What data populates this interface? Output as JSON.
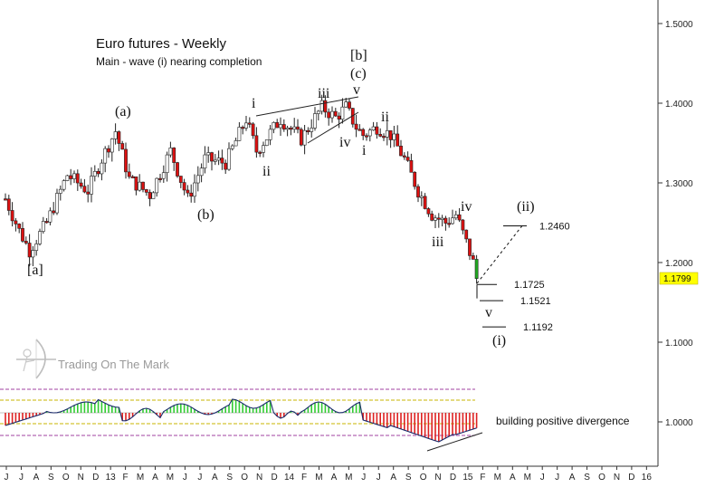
{
  "chart_data": {
    "type": "candlestick",
    "title": "Euro futures - Weekly",
    "subtitle": "Main - wave (i) nearing completion",
    "y_axis": {
      "range": [
        0.94,
        1.52
      ],
      "ticks": [
        "1.5000",
        "1.4000",
        "1.3000",
        "1.2000",
        "1.1000",
        "1.0000"
      ],
      "tick_values": [
        1.5,
        1.4,
        1.3,
        1.2,
        1.1,
        1.0
      ],
      "side": "right"
    },
    "x_axis": {
      "ticks": [
        "J",
        "J",
        "A",
        "S",
        "O",
        "N",
        "D",
        "13",
        "F",
        "M",
        "A",
        "M",
        "J",
        "J",
        "A",
        "S",
        "O",
        "N",
        "D",
        "14",
        "F",
        "M",
        "A",
        "M",
        "J",
        "J",
        "A",
        "S",
        "O",
        "N",
        "D",
        "15",
        "F",
        "M",
        "A",
        "M",
        "J",
        "J",
        "A",
        "S",
        "O",
        "N",
        "D",
        "16"
      ]
    },
    "last_price": {
      "label": "1.1799",
      "value": 1.1799,
      "color": "#ffff00"
    },
    "price_path": [
      {
        "week": 0,
        "price": 1.28
      },
      {
        "week": 4,
        "price": 1.24
      },
      {
        "week": 7,
        "price": 1.215
      },
      {
        "week": 12,
        "price": 1.25
      },
      {
        "week": 18,
        "price": 1.31
      },
      {
        "week": 24,
        "price": 1.29
      },
      {
        "week": 28,
        "price": 1.33
      },
      {
        "week": 32,
        "price": 1.365
      },
      {
        "week": 36,
        "price": 1.305
      },
      {
        "week": 42,
        "price": 1.285
      },
      {
        "week": 48,
        "price": 1.34
      },
      {
        "week": 53,
        "price": 1.28
      },
      {
        "week": 58,
        "price": 1.33
      },
      {
        "week": 64,
        "price": 1.325
      },
      {
        "week": 70,
        "price": 1.38
      },
      {
        "week": 73,
        "price": 1.34
      },
      {
        "week": 80,
        "price": 1.38
      },
      {
        "week": 86,
        "price": 1.355
      },
      {
        "week": 92,
        "price": 1.395
      },
      {
        "week": 96,
        "price": 1.382
      },
      {
        "week": 99,
        "price": 1.395
      },
      {
        "week": 102,
        "price": 1.37
      },
      {
        "week": 104,
        "price": 1.36
      },
      {
        "week": 108,
        "price": 1.37
      },
      {
        "week": 112,
        "price": 1.36
      },
      {
        "week": 116,
        "price": 1.33
      },
      {
        "week": 120,
        "price": 1.29
      },
      {
        "week": 124,
        "price": 1.26
      },
      {
        "week": 128,
        "price": 1.25
      },
      {
        "week": 131,
        "price": 1.26
      },
      {
        "week": 134,
        "price": 1.225
      },
      {
        "week": 136,
        "price": 1.2
      },
      {
        "week": 137,
        "price": 1.18
      }
    ],
    "wave_labels": [
      "[a]",
      "(a)",
      "(b)",
      "i",
      "ii",
      "iii",
      "iv",
      "v",
      "[b]",
      "(c)",
      "i",
      "ii",
      "iii",
      "iv",
      "v",
      "(i)",
      "(ii)"
    ],
    "levels": [
      {
        "label": "1.2460",
        "value": 1.246
      },
      {
        "label": "1.1725",
        "value": 1.1725
      },
      {
        "label": "1.1521",
        "value": 1.1521
      },
      {
        "label": "1.1192",
        "value": 1.1192
      }
    ],
    "indicator": {
      "note": "building positive divergence",
      "colors": {
        "positive": "#33cc33",
        "negative": "#dd2222",
        "guide_purple": "#a040a0",
        "guide_yellow": "#c8b400"
      }
    },
    "grid": false
  },
  "branding": {
    "text": "Trading On The Mark"
  },
  "colors": {
    "up_candle": "#ffffff",
    "down_candle": "#dd1111",
    "axis": "#333333",
    "projection": "#111111"
  }
}
